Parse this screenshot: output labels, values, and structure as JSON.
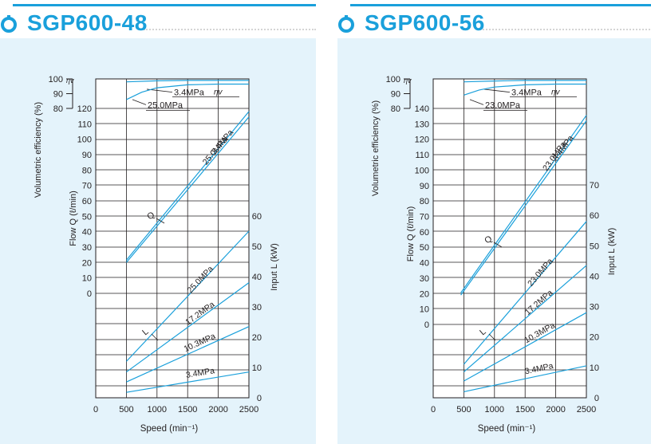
{
  "panels": [
    {
      "title": "SGP600-48",
      "icon": "pump-ring-icon",
      "accent": "#1aa0db",
      "background": "#e4f3fb"
    },
    {
      "title": "SGP600-56",
      "icon": "pump-ring-icon",
      "accent": "#1aa0db",
      "background": "#e4f3fb"
    }
  ],
  "chart_data": [
    {
      "type": "line",
      "title": "SGP600-48",
      "xlabel": "Speed (min⁻¹)",
      "x_ticks": [
        "0",
        "500",
        "1000",
        "1500",
        "2000",
        "2500"
      ],
      "xlim": [
        0,
        2500
      ],
      "grid": true,
      "efficiency_axis": {
        "label": "Volumetric efficiency (%)",
        "symbol": "ηv",
        "ticks": [
          "100",
          "90",
          "80"
        ],
        "ylim": [
          80,
          100
        ]
      },
      "flow_axis": {
        "label": "Flow Q (ℓ/min)",
        "ticks": [
          "0",
          "10",
          "20",
          "30",
          "40",
          "50",
          "60",
          "70",
          "80",
          "90",
          "100",
          "110",
          "120"
        ],
        "ylim": [
          0,
          120
        ]
      },
      "input_axis": {
        "label": "Input L (kW)",
        "ticks": [
          "0",
          "10",
          "20",
          "30",
          "40",
          "50",
          "60"
        ],
        "ylim": [
          0,
          60
        ]
      },
      "curve_labels": {
        "efficiency": "ηv",
        "flow": "Q",
        "input": "L"
      },
      "series": [
        {
          "group": "efficiency",
          "name": "3.4MPa",
          "x": [
            500,
            1000,
            1500,
            2000,
            2500
          ],
          "y": [
            98,
            98.7,
            99,
            99,
            99
          ]
        },
        {
          "group": "efficiency",
          "name": "25.0MPa",
          "x": [
            500,
            750,
            1000,
            1500,
            2000,
            2500
          ],
          "y": [
            86,
            91,
            94,
            96,
            96.5,
            96.5
          ]
        },
        {
          "group": "flow",
          "name": "3.4MPa",
          "x": [
            500,
            2500
          ],
          "y": [
            21.5,
            118
          ]
        },
        {
          "group": "flow",
          "name": "25.0MPa",
          "x": [
            500,
            2500
          ],
          "y": [
            20,
            114.5
          ]
        },
        {
          "group": "input",
          "name": "25.0MPa",
          "x": [
            500,
            2500
          ],
          "y": [
            12,
            55
          ]
        },
        {
          "group": "input",
          "name": "17.2MPa",
          "x": [
            500,
            2500
          ],
          "y": [
            8.5,
            38
          ]
        },
        {
          "group": "input",
          "name": "10.3MPa",
          "x": [
            500,
            2500
          ],
          "y": [
            5.2,
            23.5
          ]
        },
        {
          "group": "input",
          "name": "3.4MPa",
          "x": [
            500,
            2500
          ],
          "y": [
            1.8,
            8.5
          ]
        }
      ]
    },
    {
      "type": "line",
      "title": "SGP600-56",
      "xlabel": "Speed (min⁻¹)",
      "x_ticks": [
        "0",
        "500",
        "1000",
        "1500",
        "2000",
        "2500"
      ],
      "xlim": [
        0,
        2500
      ],
      "grid": true,
      "efficiency_axis": {
        "label": "Volumetric efficiency (%)",
        "symbol": "ηv",
        "ticks": [
          "100",
          "90",
          "80"
        ],
        "ylim": [
          80,
          100
        ]
      },
      "flow_axis": {
        "label": "Flow Q (ℓ/min)",
        "ticks": [
          "0",
          "10",
          "20",
          "30",
          "40",
          "50",
          "60",
          "70",
          "80",
          "90",
          "100",
          "110",
          "120",
          "130",
          "140"
        ],
        "ylim": [
          0,
          140
        ]
      },
      "input_axis": {
        "label": "Input L (kW)",
        "ticks": [
          "0",
          "10",
          "20",
          "30",
          "40",
          "50",
          "60",
          "70"
        ],
        "ylim": [
          0,
          70
        ]
      },
      "curve_labels": {
        "efficiency": "ηv",
        "flow": "Q",
        "input": "L"
      },
      "series": [
        {
          "group": "efficiency",
          "name": "3.4MPa",
          "x": [
            500,
            1000,
            1500,
            2000,
            2500
          ],
          "y": [
            98,
            98.6,
            99,
            99,
            99
          ]
        },
        {
          "group": "efficiency",
          "name": "23.0MPa",
          "x": [
            500,
            750,
            1000,
            1500,
            2000,
            2500
          ],
          "y": [
            89,
            92.5,
            94.5,
            96,
            96.5,
            96.5
          ]
        },
        {
          "group": "flow",
          "name": "3.4MPa",
          "x": [
            450,
            2500
          ],
          "y": [
            20.5,
            135.5
          ]
        },
        {
          "group": "flow",
          "name": "23.0MPa",
          "x": [
            450,
            2500
          ],
          "y": [
            19,
            132
          ]
        },
        {
          "group": "input",
          "name": "23.0MPa",
          "x": [
            500,
            2500
          ],
          "y": [
            11,
            58
          ]
        },
        {
          "group": "input",
          "name": "17.2MPa",
          "x": [
            500,
            2500
          ],
          "y": [
            8.5,
            43.5
          ]
        },
        {
          "group": "input",
          "name": "10.3MPa",
          "x": [
            500,
            2500
          ],
          "y": [
            5.5,
            28
          ]
        },
        {
          "group": "input",
          "name": "3.4MPa",
          "x": [
            500,
            2500
          ],
          "y": [
            2,
            10.5
          ]
        }
      ]
    }
  ]
}
